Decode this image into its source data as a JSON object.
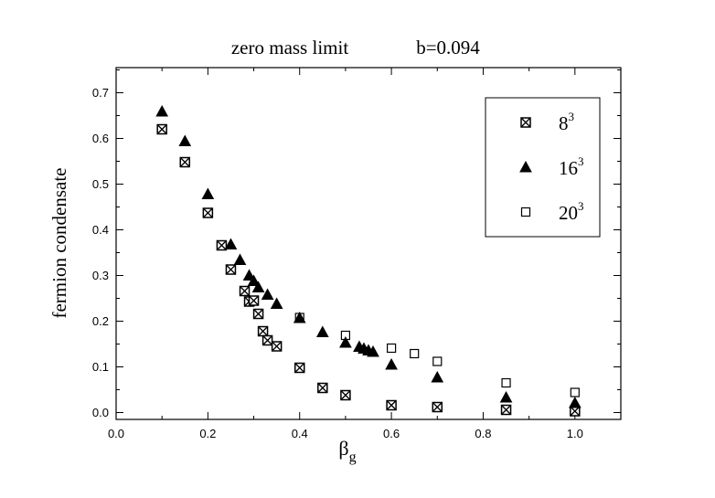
{
  "chart_data": {
    "type": "scatter",
    "title": "zero mass limit",
    "title_annotation": "b=0.094",
    "xlabel": "β",
    "xlabel_subscript": "g",
    "ylabel": "fermion condensate",
    "xlim": [
      0.0,
      1.1
    ],
    "ylim": [
      -0.015,
      0.755
    ],
    "xticks": [
      0.0,
      0.2,
      0.4,
      0.6,
      0.8,
      1.0
    ],
    "xtick_labels": [
      "0.0",
      "0.2",
      "0.4",
      "0.6",
      "0.8",
      "1.0"
    ],
    "yticks": [
      0.0,
      0.1,
      0.2,
      0.3,
      0.4,
      0.5,
      0.6,
      0.7
    ],
    "ytick_labels": [
      "0.0",
      "0.1",
      "0.2",
      "0.3",
      "0.4",
      "0.5",
      "0.6",
      "0.7"
    ],
    "grid": false,
    "legend_position": "top-right",
    "series": [
      {
        "name": "8",
        "superscript": "3",
        "marker": "square-x",
        "x": [
          0.1,
          0.15,
          0.2,
          0.23,
          0.25,
          0.28,
          0.29,
          0.3,
          0.31,
          0.32,
          0.33,
          0.35,
          0.4,
          0.45,
          0.5,
          0.6,
          0.7,
          0.85,
          1.0
        ],
        "y": [
          0.62,
          0.548,
          0.437,
          0.366,
          0.313,
          0.266,
          0.243,
          0.245,
          0.216,
          0.178,
          0.158,
          0.145,
          0.098,
          0.054,
          0.038,
          0.016,
          0.012,
          0.006,
          0.003
        ]
      },
      {
        "name": "16",
        "superscript": "3",
        "marker": "filled-triangle",
        "x": [
          0.1,
          0.15,
          0.2,
          0.25,
          0.27,
          0.29,
          0.3,
          0.31,
          0.33,
          0.35,
          0.4,
          0.45,
          0.5,
          0.53,
          0.54,
          0.55,
          0.56,
          0.6,
          0.7,
          0.85,
          1.0
        ],
        "y": [
          0.659,
          0.594,
          0.478,
          0.368,
          0.334,
          0.3,
          0.288,
          0.274,
          0.258,
          0.238,
          0.207,
          0.176,
          0.153,
          0.144,
          0.14,
          0.136,
          0.133,
          0.105,
          0.077,
          0.033,
          0.021
        ]
      },
      {
        "name": "20",
        "superscript": "3",
        "marker": "open-square",
        "x": [
          0.4,
          0.5,
          0.6,
          0.65,
          0.7,
          0.85,
          1.0
        ],
        "y": [
          0.208,
          0.169,
          0.141,
          0.129,
          0.112,
          0.065,
          0.044
        ]
      }
    ]
  }
}
